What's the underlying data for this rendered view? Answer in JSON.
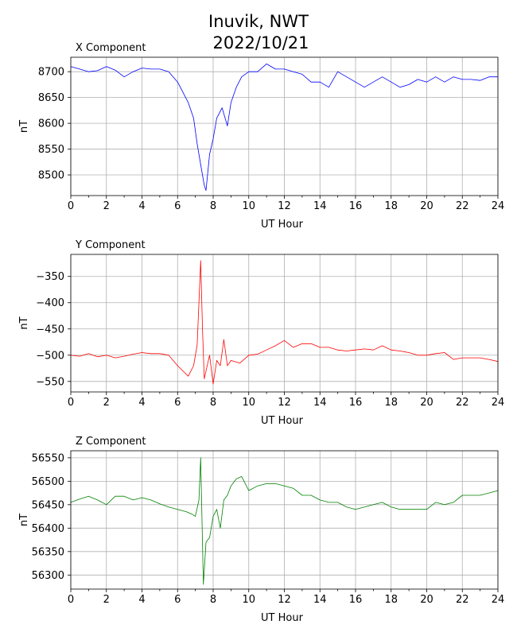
{
  "figure": {
    "title_line1": "Inuvik, NWT",
    "title_line2": "2022/10/21"
  },
  "chart_data": [
    {
      "type": "line",
      "title": "X Component",
      "xlabel": "UT Hour",
      "ylabel": "nT",
      "xlim": [
        0,
        24
      ],
      "ylim": [
        8460,
        8728
      ],
      "xticks": [
        0,
        2,
        4,
        6,
        8,
        10,
        12,
        14,
        16,
        18,
        20,
        22,
        24
      ],
      "yticks": [
        8500,
        8550,
        8600,
        8650,
        8700
      ],
      "grid": true,
      "series": [
        {
          "color": "#0000ff",
          "x": [
            0,
            0.5,
            1,
            1.5,
            2,
            2.5,
            3,
            3.5,
            4,
            4.5,
            5,
            5.5,
            6,
            6.3,
            6.6,
            6.9,
            7.1,
            7.3,
            7.5,
            7.6,
            7.8,
            8.0,
            8.2,
            8.5,
            8.8,
            9.0,
            9.3,
            9.6,
            10,
            10.5,
            11,
            11.5,
            12,
            12.5,
            13,
            13.5,
            14,
            14.5,
            15,
            15.5,
            16,
            16.5,
            17,
            17.5,
            18,
            18.5,
            19,
            19.5,
            20,
            20.5,
            21,
            21.5,
            22,
            22.5,
            23,
            23.5,
            24
          ],
          "y": [
            8710,
            8705,
            8700,
            8702,
            8710,
            8703,
            8690,
            8700,
            8707,
            8705,
            8705,
            8700,
            8680,
            8660,
            8640,
            8610,
            8560,
            8520,
            8480,
            8470,
            8540,
            8570,
            8610,
            8630,
            8595,
            8640,
            8670,
            8690,
            8700,
            8700,
            8715,
            8705,
            8705,
            8700,
            8695,
            8680,
            8680,
            8670,
            8700,
            8690,
            8680,
            8670,
            8680,
            8690,
            8680,
            8670,
            8675,
            8685,
            8680,
            8690,
            8680,
            8690,
            8685,
            8685,
            8683,
            8690,
            8690
          ]
        }
      ]
    },
    {
      "type": "line",
      "title": "Y Component",
      "xlabel": "UT Hour",
      "ylabel": "nT",
      "xlim": [
        0,
        24
      ],
      "ylim": [
        -570,
        -308
      ],
      "xticks": [
        0,
        2,
        4,
        6,
        8,
        10,
        12,
        14,
        16,
        18,
        20,
        22,
        24
      ],
      "yticks": [
        -550,
        -500,
        -450,
        -400,
        -350
      ],
      "grid": true,
      "series": [
        {
          "color": "#ff0000",
          "x": [
            0,
            0.5,
            1,
            1.5,
            2,
            2.5,
            3,
            3.5,
            4,
            4.5,
            5,
            5.5,
            6,
            6.3,
            6.6,
            6.9,
            7.1,
            7.3,
            7.4,
            7.5,
            7.6,
            7.8,
            8.0,
            8.2,
            8.4,
            8.6,
            8.8,
            9.0,
            9.5,
            10,
            10.5,
            11,
            11.5,
            12,
            12.5,
            13,
            13.5,
            14,
            14.5,
            15,
            15.5,
            16,
            16.5,
            17,
            17.5,
            18,
            18.5,
            19,
            19.5,
            20,
            20.5,
            21,
            21.5,
            22,
            22.5,
            23,
            23.5,
            24
          ],
          "y": [
            -500,
            -502,
            -497,
            -503,
            -500,
            -505,
            -502,
            -498,
            -495,
            -497,
            -497,
            -500,
            -520,
            -530,
            -540,
            -520,
            -480,
            -320,
            -450,
            -545,
            -530,
            -500,
            -555,
            -510,
            -520,
            -470,
            -520,
            -510,
            -515,
            -500,
            -498,
            -490,
            -482,
            -472,
            -485,
            -478,
            -478,
            -485,
            -485,
            -490,
            -492,
            -490,
            -488,
            -490,
            -482,
            -490,
            -492,
            -495,
            -500,
            -500,
            -497,
            -495,
            -508,
            -505,
            -505,
            -505,
            -508,
            -512
          ]
        }
      ]
    },
    {
      "type": "line",
      "title": "Z Component",
      "xlabel": "UT Hour",
      "ylabel": "nT",
      "xlim": [
        0,
        24
      ],
      "ylim": [
        56270,
        56565
      ],
      "xticks": [
        0,
        2,
        4,
        6,
        8,
        10,
        12,
        14,
        16,
        18,
        20,
        22,
        24
      ],
      "yticks": [
        56300,
        56350,
        56400,
        56450,
        56500,
        56550
      ],
      "grid": true,
      "series": [
        {
          "color": "#008000",
          "x": [
            0,
            0.5,
            1,
            1.5,
            2,
            2.5,
            3,
            3.5,
            4,
            4.5,
            5,
            5.5,
            6,
            6.5,
            6.8,
            7.0,
            7.2,
            7.3,
            7.45,
            7.6,
            7.8,
            8.0,
            8.2,
            8.4,
            8.6,
            8.8,
            9.0,
            9.3,
            9.6,
            10,
            10.5,
            11,
            11.5,
            12,
            12.5,
            13,
            13.5,
            14,
            14.5,
            15,
            15.5,
            16,
            16.5,
            17,
            17.5,
            18,
            18.5,
            19,
            19.5,
            20,
            20.5,
            21,
            21.5,
            22,
            22.5,
            23,
            23.5,
            24
          ],
          "y": [
            56455,
            56462,
            56468,
            56460,
            56450,
            56468,
            56468,
            56460,
            56465,
            56460,
            56452,
            56445,
            56440,
            56435,
            56430,
            56425,
            56460,
            56550,
            56280,
            56370,
            56380,
            56425,
            56440,
            56400,
            56460,
            56470,
            56490,
            56505,
            56510,
            56480,
            56490,
            56495,
            56495,
            56490,
            56485,
            56470,
            56470,
            56460,
            56455,
            56455,
            56445,
            56440,
            56445,
            56450,
            56455,
            56445,
            56440,
            56440,
            56440,
            56440,
            56455,
            56450,
            56455,
            56470,
            56470,
            56470,
            56475,
            56480
          ]
        }
      ]
    }
  ]
}
